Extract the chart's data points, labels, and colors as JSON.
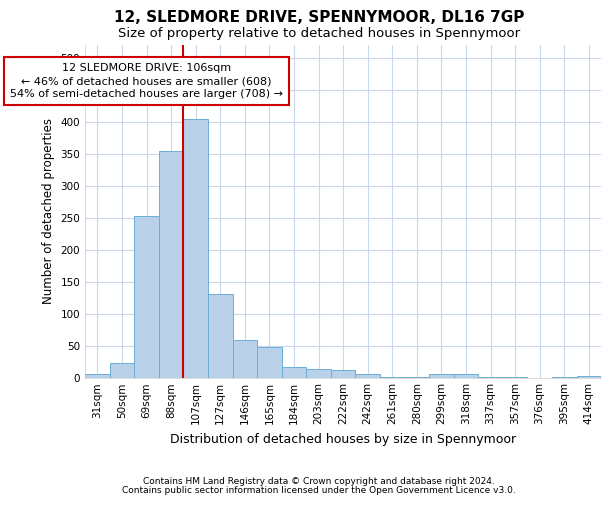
{
  "title": "12, SLEDMORE DRIVE, SPENNYMOOR, DL16 7GP",
  "subtitle": "Size of property relative to detached houses in Spennymoor",
  "xlabel": "Distribution of detached houses by size in Spennymoor",
  "ylabel": "Number of detached properties",
  "categories": [
    "31sqm",
    "50sqm",
    "69sqm",
    "88sqm",
    "107sqm",
    "127sqm",
    "146sqm",
    "165sqm",
    "184sqm",
    "203sqm",
    "222sqm",
    "242sqm",
    "261sqm",
    "280sqm",
    "299sqm",
    "318sqm",
    "337sqm",
    "357sqm",
    "376sqm",
    "395sqm",
    "414sqm"
  ],
  "values": [
    5,
    22,
    252,
    355,
    405,
    130,
    58,
    48,
    17,
    14,
    12,
    6,
    1,
    1,
    6,
    5,
    1,
    1,
    0,
    1,
    3
  ],
  "bar_color": "#b8d0e8",
  "bar_edge_color": "#6baed6",
  "vline_color": "#cc0000",
  "annotation_text": "12 SLEDMORE DRIVE: 106sqm\n← 46% of detached houses are smaller (608)\n54% of semi-detached houses are larger (708) →",
  "annotation_box_color": "#ffffff",
  "annotation_box_edge": "#cc0000",
  "ylim": [
    0,
    520
  ],
  "yticks": [
    0,
    50,
    100,
    150,
    200,
    250,
    300,
    350,
    400,
    450,
    500
  ],
  "background_color": "#ffffff",
  "grid_color": "#c8d8ea",
  "footer_line1": "Contains HM Land Registry data © Crown copyright and database right 2024.",
  "footer_line2": "Contains public sector information licensed under the Open Government Licence v3.0.",
  "title_fontsize": 11,
  "subtitle_fontsize": 9.5,
  "xlabel_fontsize": 9,
  "ylabel_fontsize": 8.5,
  "tick_fontsize": 7.5,
  "footer_fontsize": 6.5,
  "annotation_fontsize": 8,
  "vline_index": 4
}
